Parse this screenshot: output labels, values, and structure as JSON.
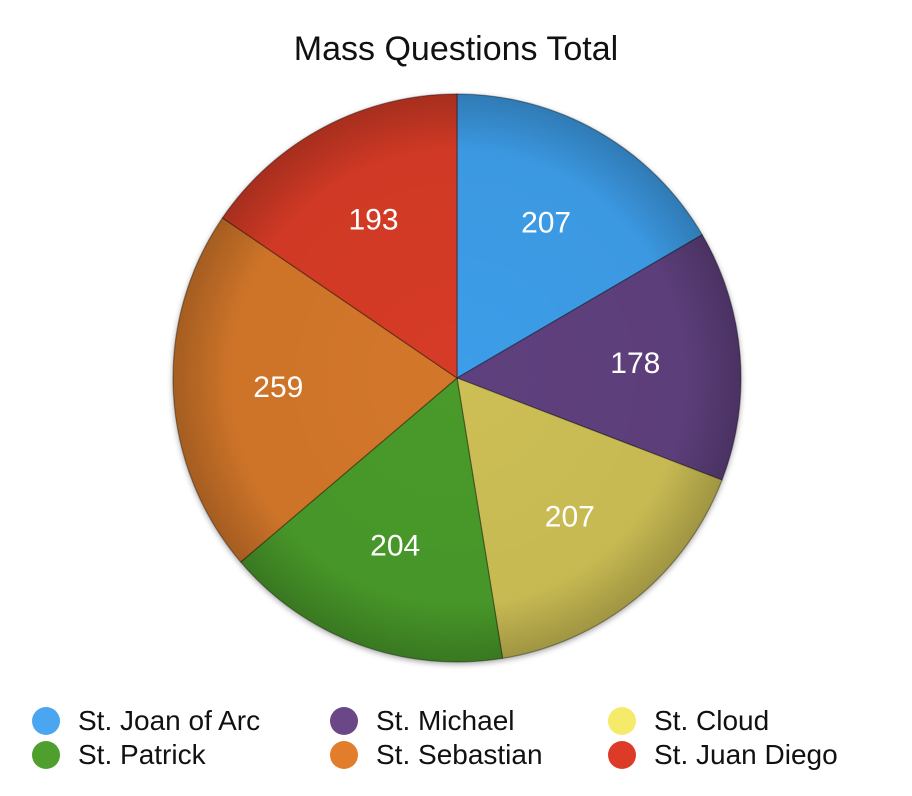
{
  "chart_data": {
    "type": "pie",
    "title": "Mass Questions Total",
    "legend_position": "bottom",
    "slices": [
      {
        "name": "St. Joan of Arc",
        "value": 207,
        "color": "#3e9de8"
      },
      {
        "name": "St. Michael",
        "value": 178,
        "color": "#5f3f7e"
      },
      {
        "name": "St. Cloud",
        "value": 207,
        "color": "#cdbf55"
      },
      {
        "name": "St. Patrick",
        "value": 204,
        "color": "#4a9a2b"
      },
      {
        "name": "St. Sebastian",
        "value": 259,
        "color": "#d3772a"
      },
      {
        "name": "St. Juan Diego",
        "value": 193,
        "color": "#d63a26"
      }
    ],
    "legend": [
      {
        "name": "St. Joan of Arc",
        "color": "#4aa6f0"
      },
      {
        "name": "St. Michael",
        "color": "#6a4787"
      },
      {
        "name": "St. Cloud",
        "color": "#f6ea6a"
      },
      {
        "name": "St. Patrick",
        "color": "#4f9f2e"
      },
      {
        "name": "St. Sebastian",
        "color": "#e27d2c"
      },
      {
        "name": "St. Juan Diego",
        "color": "#dc3b27"
      }
    ]
  }
}
